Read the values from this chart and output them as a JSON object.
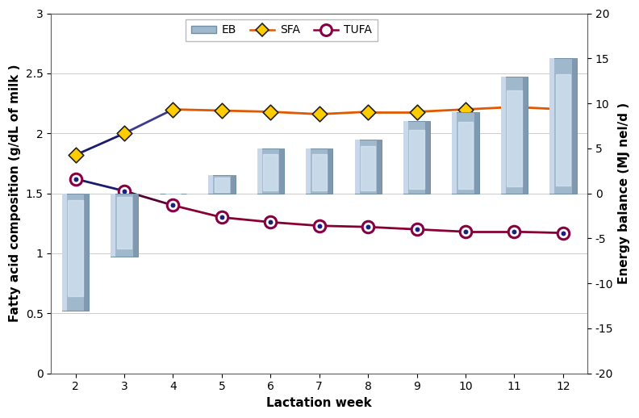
{
  "weeks": [
    2,
    3,
    4,
    5,
    6,
    7,
    8,
    9,
    10,
    11,
    12
  ],
  "EB": [
    -13,
    -7,
    0,
    2,
    5,
    5,
    6,
    8,
    9,
    13,
    15
  ],
  "SFA": [
    1.82,
    2.0,
    2.2,
    2.19,
    2.18,
    2.16,
    2.18,
    2.18,
    2.2,
    2.22,
    2.2
  ],
  "TUFA": [
    1.62,
    1.52,
    1.4,
    1.3,
    1.26,
    1.23,
    1.22,
    1.2,
    1.18,
    1.18,
    1.17
  ],
  "left_ylim": [
    0,
    3
  ],
  "right_ylim": [
    -20,
    20
  ],
  "left_yticks": [
    0,
    0.5,
    1.0,
    1.5,
    2.0,
    2.5,
    3.0
  ],
  "right_yticks": [
    -20,
    -15,
    -10,
    -5,
    0,
    5,
    10,
    15,
    20
  ],
  "xlabel": "Lactation week",
  "ylabel_left": "Fatty acid composition (g/dL of milk )",
  "ylabel_right": "Energy balance (MJ nel/d )",
  "bar_color_light": "#c8d8ea",
  "bar_color_mid": "#a0b8cc",
  "bar_color_dark": "#8099b0",
  "bar_edge_color": "#7090a8",
  "SFA_line_color_early": "#1a1a6e",
  "SFA_line_color_late": "#e05800",
  "SFA_marker_face": "#ffcc00",
  "SFA_marker_edge": "#222222",
  "TUFA_line_color_early": "#1a1a6e",
  "TUFA_line_color_late": "#880033",
  "TUFA_marker_face": "#ffffff",
  "TUFA_marker_edge": "#880044",
  "TUFA_inner_color": "#1a2080",
  "bar_width": 0.55,
  "axis_label_fontsize": 11,
  "tick_fontsize": 10,
  "legend_fontsize": 10
}
